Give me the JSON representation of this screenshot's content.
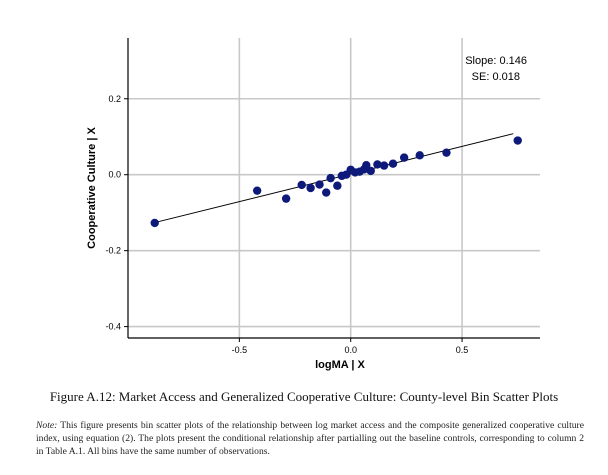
{
  "chart_data": {
    "type": "scatter",
    "xlabel": "logMA | X",
    "ylabel": "Cooperative Culture | X",
    "xlim": [
      -1.0,
      0.85
    ],
    "ylim": [
      -0.43,
      0.36
    ],
    "x_ticks": [
      -0.5,
      0.0,
      0.5
    ],
    "x_tick_labels": [
      "-0.5",
      "0.0",
      "0.5"
    ],
    "y_ticks": [
      -0.4,
      -0.2,
      0.0,
      0.2
    ],
    "y_tick_labels": [
      "-0.4",
      "-0.2",
      "0.0",
      "0.2"
    ],
    "grid": true,
    "points": [
      {
        "x": -0.88,
        "y": -0.127
      },
      {
        "x": -0.42,
        "y": -0.042
      },
      {
        "x": -0.29,
        "y": -0.063
      },
      {
        "x": -0.22,
        "y": -0.027
      },
      {
        "x": -0.18,
        "y": -0.035
      },
      {
        "x": -0.14,
        "y": -0.026
      },
      {
        "x": -0.11,
        "y": -0.047
      },
      {
        "x": -0.09,
        "y": -0.009
      },
      {
        "x": -0.06,
        "y": -0.029
      },
      {
        "x": -0.04,
        "y": -0.003
      },
      {
        "x": -0.02,
        "y": 0.0
      },
      {
        "x": 0.0,
        "y": 0.013
      },
      {
        "x": 0.02,
        "y": 0.006
      },
      {
        "x": 0.04,
        "y": 0.008
      },
      {
        "x": 0.06,
        "y": 0.014
      },
      {
        "x": 0.07,
        "y": 0.025
      },
      {
        "x": 0.09,
        "y": 0.01
      },
      {
        "x": 0.12,
        "y": 0.027
      },
      {
        "x": 0.15,
        "y": 0.024
      },
      {
        "x": 0.19,
        "y": 0.029
      },
      {
        "x": 0.24,
        "y": 0.045
      },
      {
        "x": 0.31,
        "y": 0.051
      },
      {
        "x": 0.43,
        "y": 0.058
      },
      {
        "x": 0.75,
        "y": 0.09
      }
    ],
    "fit_line": {
      "x": [
        -0.88,
        0.73
      ],
      "y": [
        -0.126,
        0.108
      ]
    },
    "annotation": {
      "slope_text": "Slope: 0.146",
      "se_text": "SE: 0.018",
      "placement": "top-right"
    },
    "colors": {
      "points": "#0d1a7a",
      "line": "#000000",
      "grid": "#c8c8c8"
    }
  },
  "caption": "Figure A.12: Market Access and Generalized Cooperative Culture: County-level Bin Scatter Plots",
  "note": {
    "label": "Note:",
    "text": " This figure presents bin scatter plots of the relationship between log market access and the composite generalized cooperative culture index, using equation (2). The plots present the conditional relationship after partialling out the baseline controls, corresponding to column 2 in Table A.1. All bins have the same number of observations."
  }
}
